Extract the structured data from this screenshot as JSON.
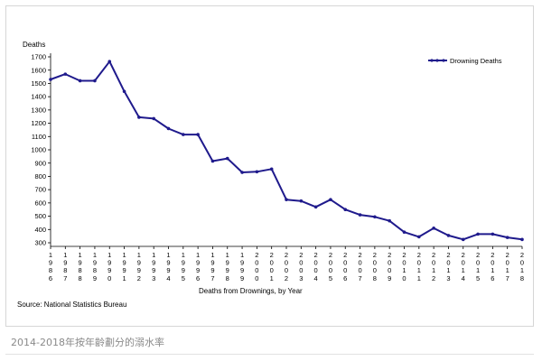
{
  "caption": "2014-2018年按年齡劃分的溺水率",
  "chart_data": {
    "type": "line",
    "ylabel": "Deaths",
    "xlabel": "Deaths from Drownings, by Year",
    "source": "Source: National Statistics Bureau",
    "ylim": [
      300,
      1700
    ],
    "yticks": [
      300,
      400,
      500,
      600,
      700,
      800,
      900,
      1000,
      1100,
      1200,
      1300,
      1400,
      1500,
      1600,
      1700
    ],
    "categories": [
      "1986",
      "1987",
      "1988",
      "1989",
      "1990",
      "1991",
      "1992",
      "1993",
      "1994",
      "1995",
      "1996",
      "1997",
      "1998",
      "1999",
      "2000",
      "2001",
      "2002",
      "2003",
      "2004",
      "2005",
      "2006",
      "2007",
      "2008",
      "2009",
      "2010",
      "2011",
      "2012",
      "2013",
      "2014",
      "2015",
      "2016",
      "2017",
      "2018"
    ],
    "series": [
      {
        "name": "Drowning Deaths",
        "color": "#1f1a8c",
        "values": [
          1530,
          1570,
          1520,
          1520,
          1665,
          1440,
          1245,
          1235,
          1160,
          1115,
          1115,
          915,
          935,
          830,
          835,
          855,
          625,
          615,
          570,
          625,
          550,
          510,
          495,
          465,
          380,
          345,
          410,
          355,
          325,
          365,
          365,
          340,
          325
        ]
      }
    ],
    "legend": "top-right",
    "grid": false
  }
}
